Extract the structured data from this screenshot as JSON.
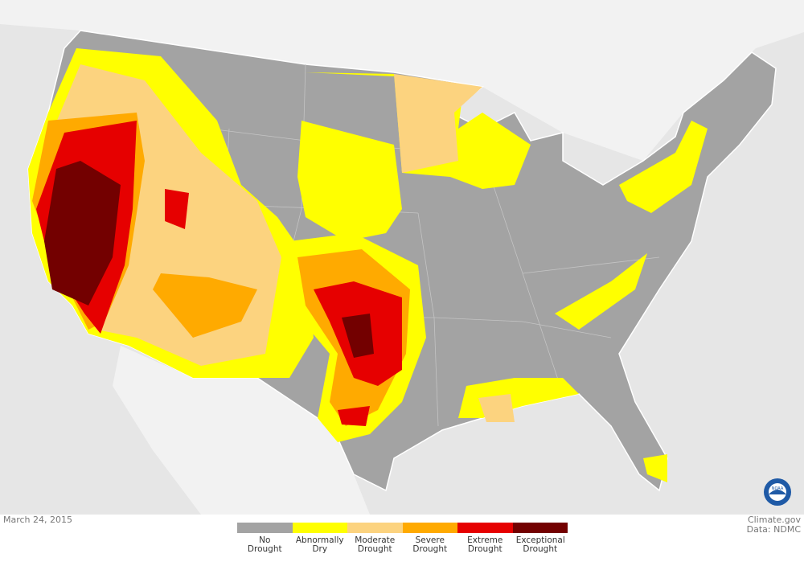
{
  "map": {
    "date": "March 24, 2015",
    "credit": "Climate.gov",
    "source": "Data: NDMC",
    "logo_text": "NOAA",
    "legend": [
      {
        "label": "No Drought",
        "color": "#a3a3a3"
      },
      {
        "label": "Abnormally Dry",
        "color": "#ffff00"
      },
      {
        "label": "Moderate Drought",
        "color": "#fcd37f"
      },
      {
        "label": "Severe Drought",
        "color": "#ffaa00"
      },
      {
        "label": "Extreme Drought",
        "color": "#e60000"
      },
      {
        "label": "Exceptional Drought",
        "color": "#730000"
      }
    ]
  }
}
